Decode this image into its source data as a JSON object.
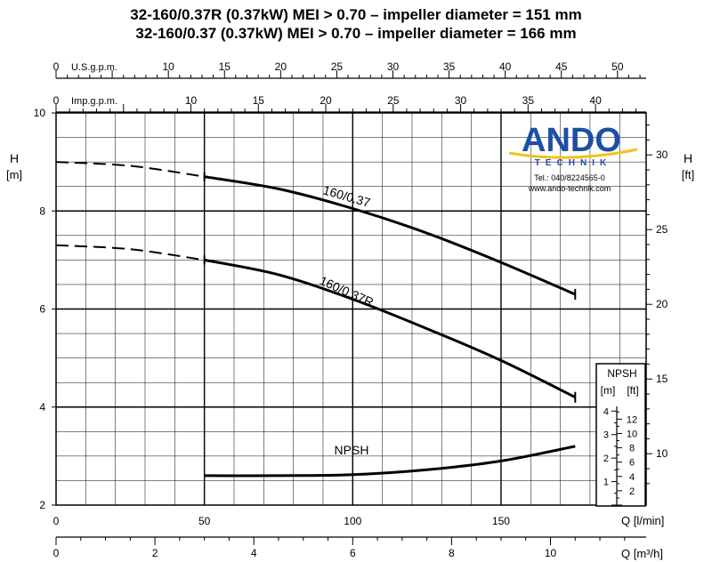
{
  "chart_data": {
    "type": "line",
    "title_lines": [
      "32-160/0.37R (0.37kW) MEI > 0.70 – impeller diameter = 151 mm",
      "32-160/0.37 (0.37kW) MEI > 0.70 – impeller diameter = 166 mm"
    ],
    "xlabel": "Q [l/min]",
    "xlabel_m3h": "Q [m³/h]",
    "ylabel_left": "H\n[m]",
    "ylabel_right": "H\n[ft]",
    "xlim": [
      0,
      200
    ],
    "ylim": [
      2,
      10
    ],
    "grid": true,
    "axes": {
      "usgpm": {
        "label": "U.S.g.p.m.",
        "ticks": [
          "0",
          "10",
          "15",
          "20",
          "25",
          "30",
          "35",
          "40",
          "45",
          "50"
        ]
      },
      "impgpm": {
        "label": "Imp.g.p.m.",
        "ticks": [
          "0",
          "10",
          "15",
          "20",
          "25",
          "30",
          "35",
          "40"
        ]
      },
      "lmin": {
        "ticks": [
          "0",
          "50",
          "100",
          "150"
        ]
      },
      "m3h": {
        "ticks": [
          "0",
          "2",
          "4",
          "6",
          "8",
          "10"
        ]
      },
      "h_m": {
        "ticks": [
          "2",
          "4",
          "6",
          "8",
          "10"
        ]
      },
      "h_ft": {
        "ticks": [
          "10",
          "15",
          "20",
          "25",
          "30"
        ]
      }
    },
    "series": [
      {
        "name": "160/0.37",
        "points_dashed": [
          [
            0,
            9.0
          ],
          [
            25,
            8.92
          ],
          [
            50,
            8.7
          ]
        ],
        "points": [
          [
            50,
            8.7
          ],
          [
            75,
            8.45
          ],
          [
            100,
            8.05
          ],
          [
            125,
            7.55
          ],
          [
            150,
            6.95
          ],
          [
            175,
            6.3
          ]
        ]
      },
      {
        "name": "160/0.37R",
        "points_dashed": [
          [
            0,
            7.3
          ],
          [
            25,
            7.22
          ],
          [
            50,
            7.0
          ]
        ],
        "points": [
          [
            50,
            7.0
          ],
          [
            75,
            6.7
          ],
          [
            100,
            6.2
          ],
          [
            125,
            5.6
          ],
          [
            150,
            4.95
          ],
          [
            175,
            4.2
          ]
        ]
      },
      {
        "name": "NPSH",
        "points": [
          [
            50,
            2.6
          ],
          [
            75,
            2.6
          ],
          [
            100,
            2.62
          ],
          [
            125,
            2.72
          ],
          [
            150,
            2.9
          ],
          [
            175,
            3.2
          ]
        ]
      }
    ],
    "npsh_scale": {
      "title": "NPSH",
      "unit_m": "[m]",
      "unit_ft": "[ft]",
      "m_ticks": [
        "1",
        "2",
        "3",
        "4"
      ],
      "ft_ticks": [
        "2",
        "4",
        "6",
        "8",
        "10",
        "12"
      ]
    }
  },
  "logo": {
    "brand": "ANDO",
    "sub": "TECHNIK",
    "phone": "Tel.: 040/8224565-0",
    "web": "www.ando-technik.com",
    "brand_color": "#1d4fa3",
    "accent_color": "#f2c21a"
  }
}
